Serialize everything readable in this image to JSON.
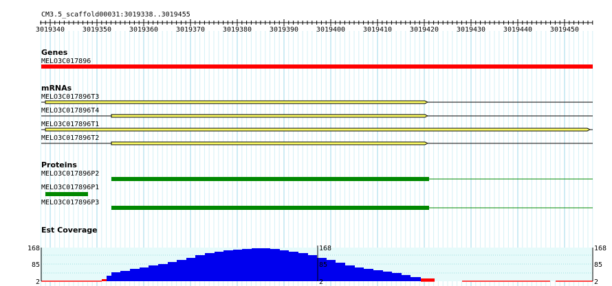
{
  "header": {
    "title": "CM3.5_scaffold00031:3019338..3019455"
  },
  "ruler": {
    "start": 3019338,
    "end": 3019455,
    "ticks": [
      3019340,
      3019350,
      3019360,
      3019370,
      3019380,
      3019390,
      3019400,
      3019410,
      3019420,
      3019430,
      3019440,
      3019450
    ]
  },
  "tracks": {
    "genes": {
      "label": "Genes",
      "features": [
        "MELO3C017896"
      ]
    },
    "mrnas": {
      "label": "mRNAs",
      "features": [
        "MELO3C017896T3",
        "MELO3C017896T4",
        "MELO3C017896T1",
        "MELO3C017896T2"
      ]
    },
    "proteins": {
      "label": "Proteins",
      "features": [
        "MELO3C017896P2",
        "MELO3C017896P1",
        "MELO3C017896P3"
      ]
    },
    "coverage": {
      "label": "Est Coverage",
      "scale": [
        "168",
        "85",
        "2"
      ]
    }
  }
}
